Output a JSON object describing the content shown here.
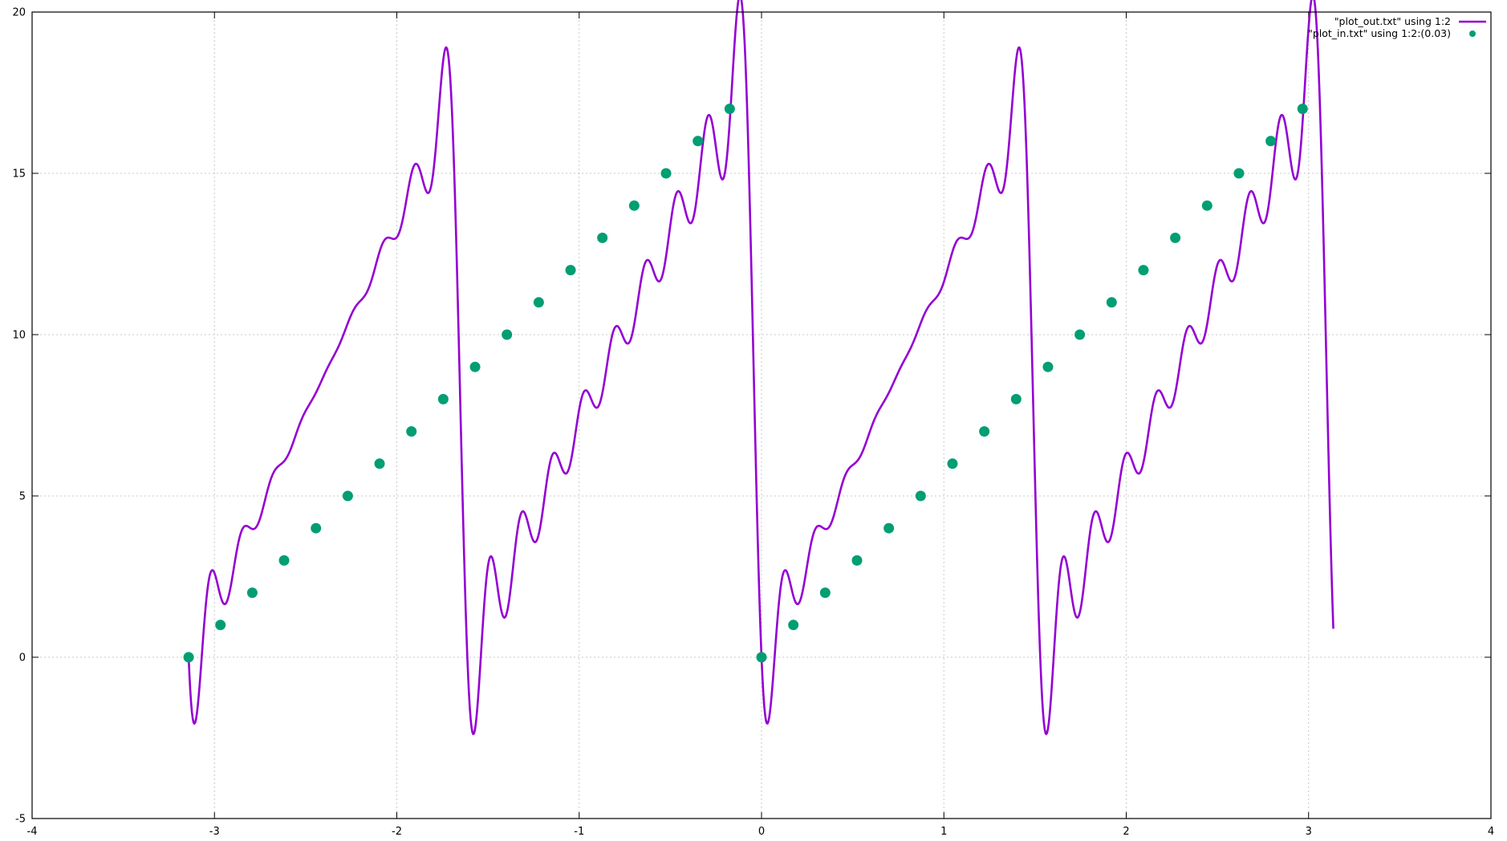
{
  "chart_data": {
    "type": "line",
    "xlim": [
      -4,
      4
    ],
    "ylim": [
      -5,
      20
    ],
    "x_ticks": [
      -4,
      -3,
      -2,
      -1,
      0,
      1,
      2,
      3,
      4
    ],
    "y_ticks": [
      -5,
      0,
      5,
      10,
      15,
      20
    ],
    "x_tick_labels": [
      "-4",
      "-3",
      "-2",
      "-1",
      "0",
      "1",
      "2",
      "3",
      "4"
    ],
    "y_tick_labels": [
      "-5",
      "0",
      "5",
      "10",
      "15",
      "20"
    ],
    "grid": true,
    "legend_position": "top-right",
    "series": [
      {
        "name": "\"plot_out.txt\" using 1:2",
        "style": "line",
        "color": "#9400d3",
        "sample_period": 3.14159265,
        "sample_count": 37
      },
      {
        "name": "\"plot_in.txt\" using 1:2:(0.03)",
        "style": "points",
        "color": "#009e73",
        "x": [
          -3.1416,
          -2.9671,
          -2.7925,
          -2.618,
          -2.4435,
          -2.2689,
          -2.0944,
          -1.9199,
          -1.7453,
          -1.5708,
          -1.3963,
          -1.2217,
          -1.0472,
          -0.8727,
          -0.6981,
          -0.5236,
          -0.3491,
          -0.1745,
          0.0,
          0.1745,
          0.3491,
          0.5236,
          0.6981,
          0.8727,
          1.0472,
          1.2217,
          1.3963,
          1.5708,
          1.7453,
          1.9199,
          2.0944,
          2.2689,
          2.4435,
          2.618,
          2.7925,
          2.9671
        ],
        "y": [
          0,
          1,
          2,
          3,
          4,
          5,
          6,
          7,
          8,
          9,
          10,
          11,
          12,
          13,
          14,
          15,
          16,
          17,
          0,
          1,
          2,
          3,
          4,
          5,
          6,
          7,
          8,
          9,
          10,
          11,
          12,
          13,
          14,
          15,
          16,
          17
        ]
      }
    ]
  }
}
